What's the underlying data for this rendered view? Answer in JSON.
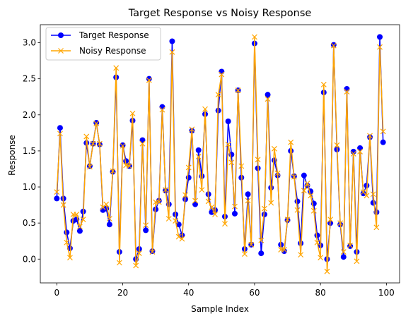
{
  "chart_data": {
    "type": "line",
    "title": "Target Response vs Noisy Response",
    "xlabel": "Sample Index",
    "ylabel": "Response",
    "xlim": [
      -5,
      104
    ],
    "ylim": [
      -0.33,
      3.25
    ],
    "grid": false,
    "legend_position": "top-left",
    "xticks": [
      0,
      20,
      40,
      60,
      80,
      100
    ],
    "xtick_labels": [
      "0",
      "20",
      "40",
      "60",
      "80",
      "100"
    ],
    "yticks": [
      0.0,
      0.5,
      1.0,
      1.5,
      2.0,
      2.5,
      3.0
    ],
    "ytick_labels": [
      "0.0",
      "0.5",
      "1.0",
      "1.5",
      "2.0",
      "2.5",
      "3.0"
    ],
    "x": [
      0,
      1,
      2,
      3,
      4,
      5,
      6,
      7,
      8,
      9,
      10,
      11,
      12,
      13,
      14,
      15,
      16,
      17,
      18,
      19,
      20,
      21,
      22,
      23,
      24,
      25,
      26,
      27,
      28,
      29,
      30,
      31,
      32,
      33,
      34,
      35,
      36,
      37,
      38,
      39,
      40,
      41,
      42,
      43,
      44,
      45,
      46,
      47,
      48,
      49,
      50,
      51,
      52,
      53,
      54,
      55,
      56,
      57,
      58,
      59,
      60,
      61,
      62,
      63,
      64,
      65,
      66,
      67,
      68,
      69,
      70,
      71,
      72,
      73,
      74,
      75,
      76,
      77,
      78,
      79,
      80,
      81,
      82,
      83,
      84,
      85,
      86,
      87,
      88,
      89,
      90,
      91,
      92,
      93,
      94,
      95,
      96,
      97,
      98,
      99
    ],
    "series": [
      {
        "name": "Target Response",
        "color": "#0000ff",
        "marker": "circle",
        "values": [
          0.84,
          1.82,
          0.84,
          0.37,
          0.15,
          0.53,
          0.55,
          0.39,
          0.66,
          1.61,
          1.29,
          1.6,
          1.89,
          1.59,
          0.68,
          0.7,
          0.48,
          1.21,
          2.52,
          0.1,
          1.58,
          1.36,
          1.29,
          1.92,
          0.0,
          0.14,
          1.65,
          0.4,
          2.5,
          0.11,
          0.69,
          0.81,
          2.11,
          0.95,
          0.76,
          3.02,
          0.62,
          0.48,
          0.33,
          0.83,
          1.13,
          1.78,
          0.76,
          1.51,
          1.15,
          2.01,
          0.9,
          0.65,
          0.68,
          2.06,
          2.6,
          0.59,
          1.91,
          1.45,
          0.63,
          2.34,
          1.13,
          0.14,
          0.9,
          0.2,
          2.99,
          1.26,
          0.08,
          0.62,
          2.28,
          0.99,
          1.37,
          1.16,
          0.2,
          0.11,
          0.54,
          1.5,
          1.15,
          0.8,
          0.22,
          1.16,
          1.02,
          0.94,
          0.77,
          0.33,
          0.19,
          2.31,
          0.0,
          0.5,
          2.97,
          1.52,
          0.48,
          0.03,
          2.36,
          0.18,
          1.49,
          0.1,
          1.54,
          0.91,
          1.02,
          1.69,
          0.78,
          0.65,
          3.08,
          1.62
        ]
      },
      {
        "name": "Noisy Response",
        "color": "#ffa500",
        "marker": "x",
        "values": [
          0.93,
          1.74,
          0.75,
          0.23,
          0.02,
          0.62,
          0.62,
          0.45,
          0.55,
          1.7,
          1.28,
          1.6,
          1.88,
          1.6,
          0.72,
          0.76,
          0.56,
          1.22,
          2.65,
          -0.05,
          1.57,
          1.3,
          1.29,
          2.02,
          -0.09,
          0.08,
          1.6,
          0.47,
          2.48,
          0.1,
          0.79,
          0.79,
          2.07,
          0.96,
          0.56,
          2.87,
          0.53,
          0.31,
          0.28,
          0.89,
          1.27,
          1.8,
          0.81,
          1.42,
          0.96,
          2.08,
          0.8,
          0.72,
          0.62,
          2.28,
          2.56,
          0.49,
          1.59,
          1.34,
          0.73,
          2.34,
          1.29,
          0.07,
          0.81,
          0.2,
          3.08,
          1.38,
          0.26,
          0.7,
          2.22,
          0.78,
          1.53,
          1.19,
          0.13,
          0.13,
          0.55,
          1.62,
          1.14,
          0.68,
          0.06,
          0.95,
          1.05,
          0.88,
          0.67,
          0.23,
          0.02,
          2.42,
          -0.17,
          0.55,
          2.96,
          1.58,
          0.5,
          0.1,
          2.32,
          0.19,
          1.46,
          -0.03,
          1.49,
          0.93,
          0.88,
          1.71,
          0.9,
          0.44,
          2.94,
          1.77
        ]
      }
    ]
  }
}
